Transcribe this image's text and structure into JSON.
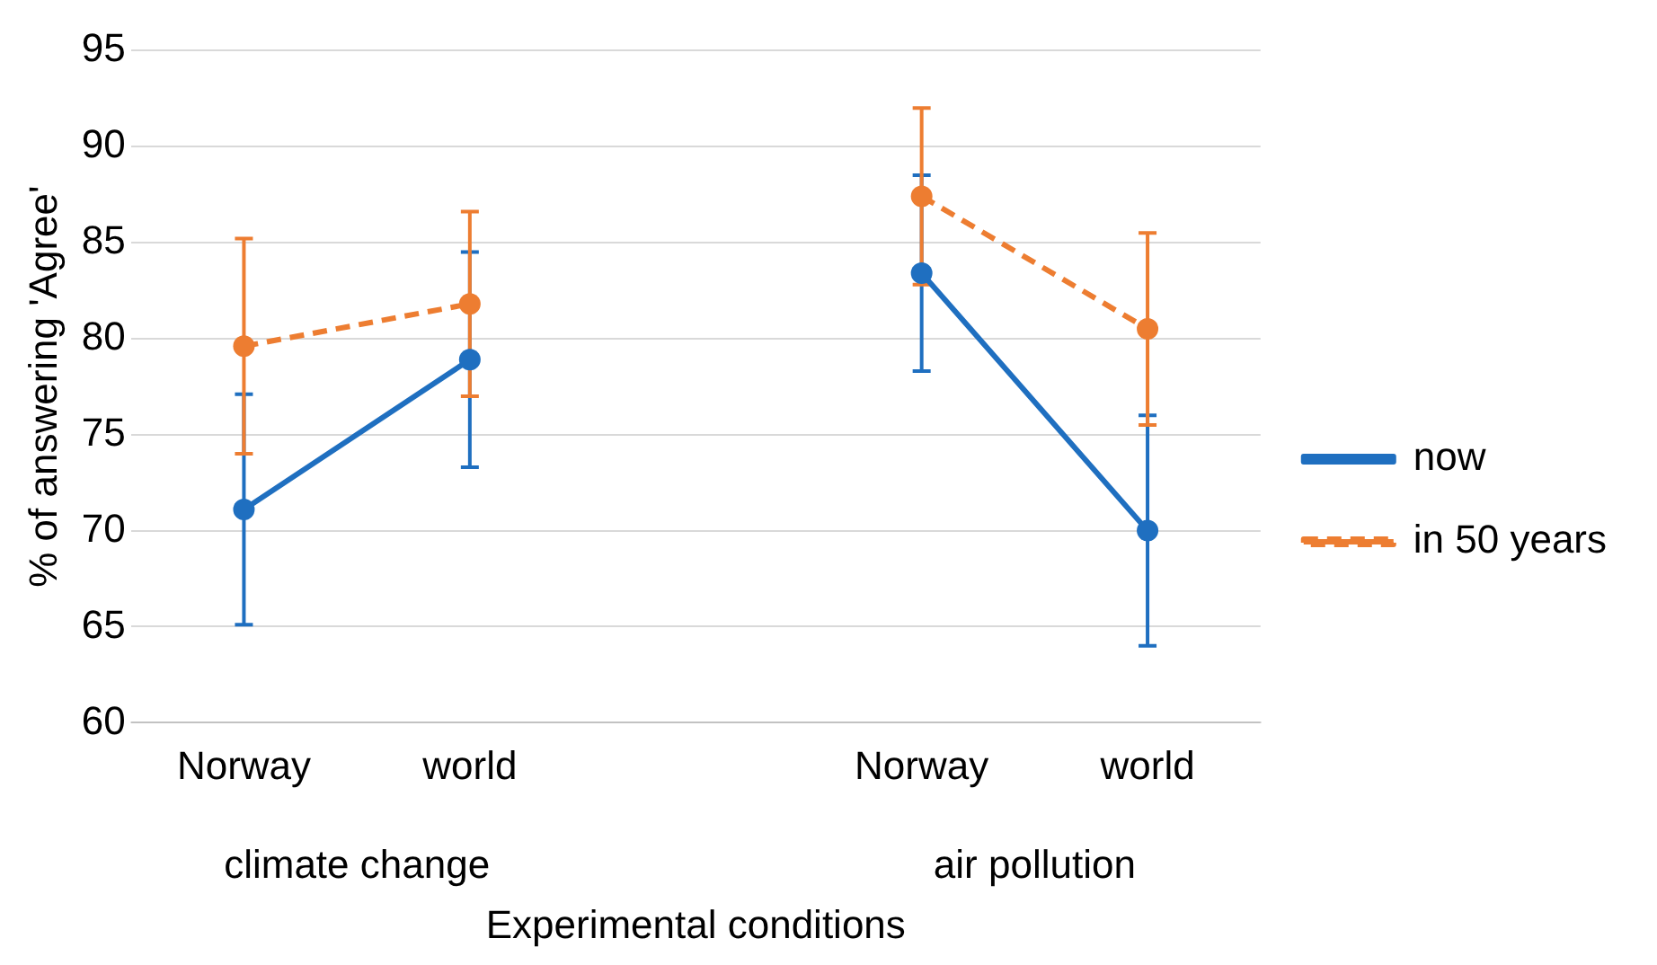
{
  "chart_data": {
    "type": "line",
    "xlabel": "Experimental conditions",
    "ylabel": "% of answering 'Agree'",
    "categories": [
      "Norway",
      "world",
      null,
      "Norway",
      "world"
    ],
    "annotations": [
      "climate change",
      "air pollution"
    ],
    "series": [
      {
        "name": "now",
        "color": "#1f6fc0",
        "values": [
          71.1,
          78.9,
          null,
          83.4,
          70.0
        ],
        "errors": [
          6.0,
          5.6,
          null,
          5.1,
          6.0
        ],
        "line_style": "solid"
      },
      {
        "name": "in 50 years",
        "color": "#ed7d31",
        "values": [
          79.6,
          81.8,
          null,
          87.4,
          80.5
        ],
        "errors": [
          5.6,
          4.8,
          null,
          4.6,
          5.0
        ],
        "line_style": "dashed"
      }
    ],
    "ylim": [
      60,
      95
    ],
    "yticks": [
      60,
      65,
      70,
      75,
      80,
      85,
      90,
      95
    ],
    "grid": "y",
    "legend": "right",
    "marker": "circle"
  }
}
